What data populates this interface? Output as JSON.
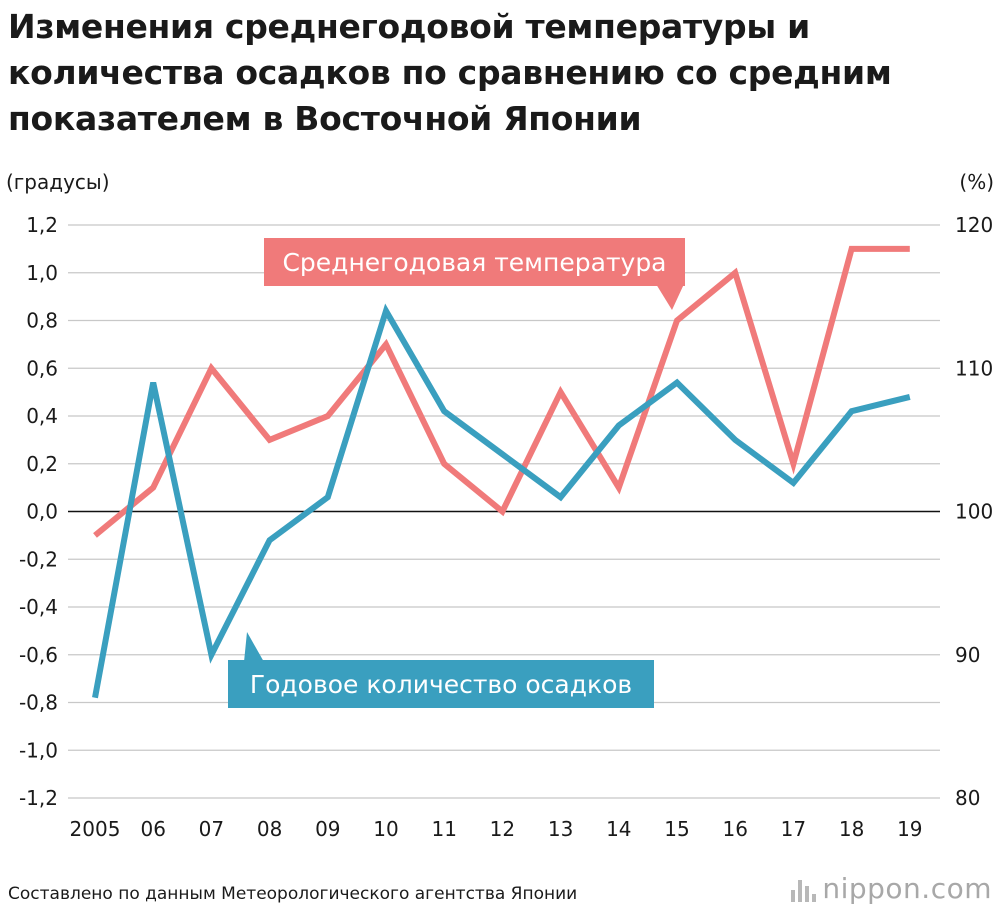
{
  "title": "Изменения среднегодовой температуры и количества осадков по сравнению со средним показателем в Восточной Японии",
  "chart_data": {
    "type": "line",
    "title": "Изменения среднегодовой температуры и количества осадков по сравнению со средним показателем в Восточной Японии",
    "categories": [
      "2005",
      "06",
      "07",
      "08",
      "09",
      "10",
      "11",
      "12",
      "13",
      "14",
      "15",
      "16",
      "17",
      "18",
      "19"
    ],
    "y_left": {
      "label": "(градусы)",
      "ylim": [
        -1.2,
        1.2
      ],
      "ticks": [
        "1,2",
        "1,0",
        "0,8",
        "0,6",
        "0,4",
        "0,2",
        "0,0",
        "-0,2",
        "-0,4",
        "-0,6",
        "-0,8",
        "-1,0",
        "-1,2"
      ],
      "tick_values": [
        1.2,
        1.0,
        0.8,
        0.6,
        0.4,
        0.2,
        0.0,
        -0.2,
        -0.4,
        -0.6,
        -0.8,
        -1.0,
        -1.2
      ]
    },
    "y_right": {
      "label": "(%)",
      "ylim": [
        80,
        120
      ],
      "ticks": [
        "120",
        "110",
        "100",
        "90",
        "80"
      ],
      "tick_values": [
        120,
        110,
        100,
        90,
        80
      ]
    },
    "series": [
      {
        "name": "Среднегодовая температура",
        "axis": "left",
        "color": "#f07a7a",
        "values": [
          -0.1,
          0.1,
          0.6,
          0.3,
          0.4,
          0.7,
          0.2,
          0.0,
          0.5,
          0.1,
          0.8,
          1.0,
          0.2,
          1.1,
          1.1
        ]
      },
      {
        "name": "Годовое количество осадков",
        "axis": "right",
        "color": "#3a9fbf",
        "values": [
          87,
          109,
          90,
          98,
          101,
          114,
          107,
          104,
          101,
          106,
          109,
          105,
          102,
          107,
          108
        ]
      }
    ],
    "grid": true
  },
  "source": "Составлено по данным Метеорологического агентства Японии",
  "brand": {
    "name": "nippon",
    "suffix": ".com"
  }
}
